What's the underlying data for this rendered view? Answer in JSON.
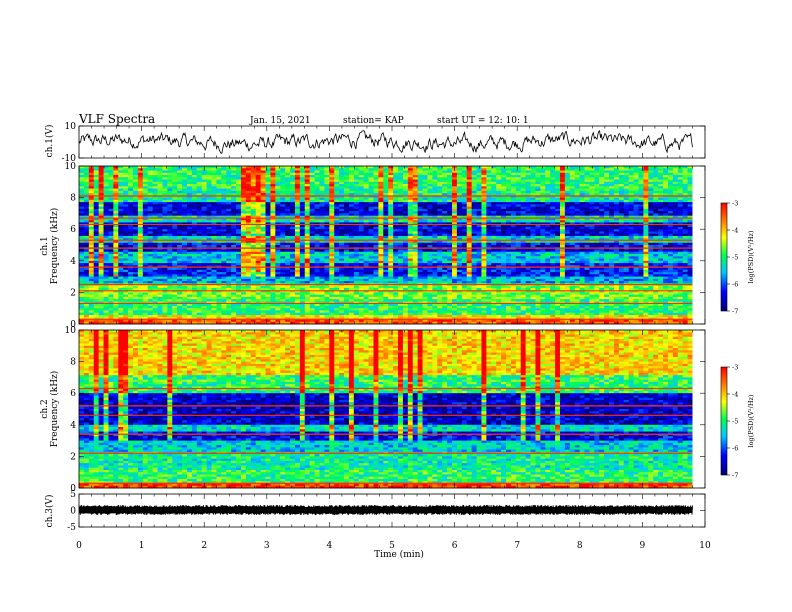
{
  "header": {
    "title": "VLF Spectra",
    "date": "Jan. 15, 2021",
    "station": "station= KAP",
    "start": "start  UT =   12: 10: 1"
  },
  "colorbar": {
    "label": "log(PSD)(V²/Hz)",
    "ticks": [
      "-3",
      "-4",
      "-5",
      "-6",
      "-7"
    ],
    "range": [
      -7,
      -3
    ]
  },
  "chart_data": [
    {
      "type": "line",
      "panel": "ch1-waveform",
      "ylabel": "ch.1(V)",
      "ylim": [
        -10,
        10
      ],
      "yticks": [
        "10",
        "-10"
      ],
      "xlim": [
        0,
        9.8
      ],
      "description_values": "noisy waveform fluctuating roughly between -6 and 6 V"
    },
    {
      "type": "heatmap",
      "panel": "ch1-spectrogram",
      "ylabel": "ch.1\nFrequency (kHz)",
      "ylim": [
        0,
        10
      ],
      "yticks": [
        "0",
        "2",
        "4",
        "6",
        "8",
        "10"
      ],
      "xlim": [
        0,
        9.8
      ],
      "bands": [
        {
          "from": 0.0,
          "to": 0.3,
          "level": -3.4
        },
        {
          "from": 0.3,
          "to": 0.6,
          "level": -4.2
        },
        {
          "from": 0.6,
          "to": 1.6,
          "level": -5.0
        },
        {
          "from": 1.6,
          "to": 2.6,
          "level": -4.7
        },
        {
          "from": 2.6,
          "to": 3.0,
          "level": -5.6
        },
        {
          "from": 3.0,
          "to": 3.9,
          "level": -6.3
        },
        {
          "from": 3.9,
          "to": 4.6,
          "level": -5.5
        },
        {
          "from": 4.6,
          "to": 5.1,
          "level": -6.4
        },
        {
          "from": 5.1,
          "to": 5.6,
          "level": -5.4
        },
        {
          "from": 5.6,
          "to": 6.4,
          "level": -6.5
        },
        {
          "from": 6.4,
          "to": 6.8,
          "level": -5.3
        },
        {
          "from": 6.8,
          "to": 7.7,
          "level": -6.5
        },
        {
          "from": 7.7,
          "to": 8.5,
          "level": -5.2
        },
        {
          "from": 8.5,
          "to": 10.0,
          "level": -5.0
        }
      ],
      "lines_khz": [
        0.3,
        1.3,
        2.1,
        2.5,
        3.6,
        4.8,
        5.3,
        6.3,
        6.7,
        8.1
      ]
    },
    {
      "type": "heatmap",
      "panel": "ch2-spectrogram",
      "ylabel": "ch.2\nFrequency (kHz)",
      "ylim": [
        0,
        10
      ],
      "yticks": [
        "0",
        "2",
        "4",
        "6",
        "8",
        "10"
      ],
      "xlim": [
        0,
        9.8
      ],
      "bands": [
        {
          "from": 0.0,
          "to": 0.3,
          "level": -3.3
        },
        {
          "from": 0.3,
          "to": 1.2,
          "level": -5.0
        },
        {
          "from": 1.2,
          "to": 2.3,
          "level": -5.2
        },
        {
          "from": 2.3,
          "to": 3.0,
          "level": -5.5
        },
        {
          "from": 3.0,
          "to": 3.6,
          "level": -6.4
        },
        {
          "from": 3.6,
          "to": 4.0,
          "level": -5.4
        },
        {
          "from": 4.0,
          "to": 6.0,
          "level": -6.6
        },
        {
          "from": 6.0,
          "to": 7.2,
          "level": -5.0
        },
        {
          "from": 7.2,
          "to": 10.0,
          "level": -4.1
        }
      ],
      "lines_khz": [
        0.3,
        2.2,
        3.4,
        4.6,
        5.2,
        6.3
      ]
    },
    {
      "type": "line",
      "panel": "ch3-waveform",
      "ylabel": "ch.3(V)",
      "ylim": [
        -5,
        5
      ],
      "yticks": [
        "5",
        "0",
        "-5"
      ],
      "xlim": [
        0,
        9.8
      ],
      "description_values": "dense oscillation confined to about -0.3 to 0.3 V"
    }
  ],
  "xaxis": {
    "label": "Time (min)",
    "ticks": [
      "0",
      "1",
      "2",
      "3",
      "4",
      "5",
      "6",
      "7",
      "8",
      "9",
      "10"
    ],
    "range": [
      0,
      10
    ]
  }
}
